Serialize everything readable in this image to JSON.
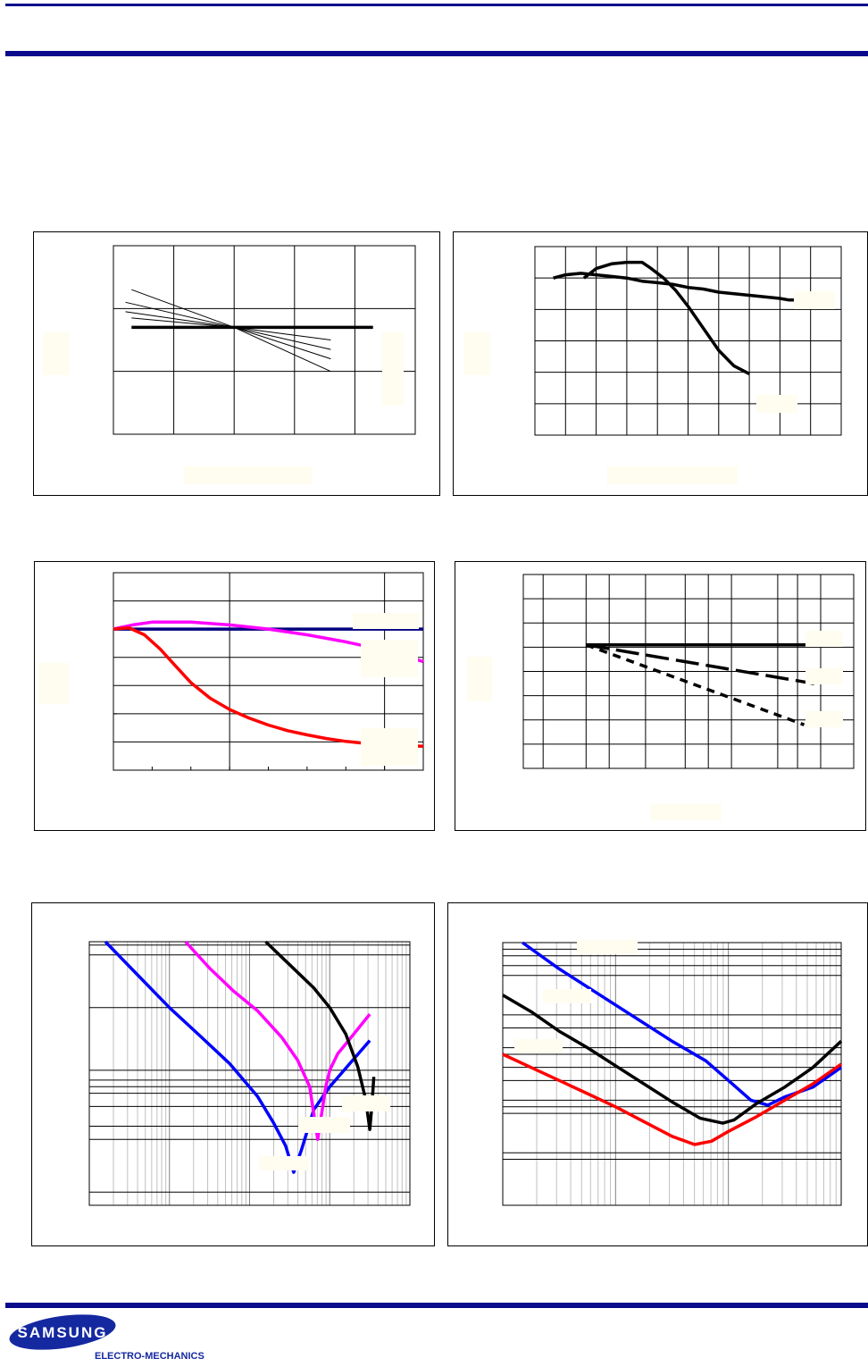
{
  "colors": {
    "rule": "#0a0a8c",
    "label_box": "#fffdf0",
    "logo_blue": "#1428a0",
    "black": "#000000",
    "blue": "#0000ff",
    "magenta": "#ff00ff",
    "red": "#ff0000",
    "navy": "#000080"
  },
  "branding": {
    "brand": "SAMSUNG",
    "division": "ELECTRO-MECHANICS"
  },
  "chart_data": [
    {
      "id": "chart-1",
      "type": "line",
      "x_range": [
        0,
        5
      ],
      "y_range": [
        0,
        3
      ],
      "vlines": [
        1,
        2,
        3,
        4
      ],
      "hlines": [
        1,
        2
      ],
      "series": [
        {
          "style": "thick",
          "color": "#000000",
          "x": [
            0.3,
            4.3
          ],
          "y": [
            1.7,
            1.7
          ]
        },
        {
          "style": "thin",
          "color": "#000000",
          "x": [
            0.3,
            2.0,
            3.6
          ],
          "y": [
            2.3,
            1.7,
            1.0
          ]
        },
        {
          "style": "thin",
          "color": "#000000",
          "x": [
            0.2,
            2.0,
            3.6
          ],
          "y": [
            2.1,
            1.7,
            1.2
          ]
        },
        {
          "style": "thin",
          "color": "#000000",
          "x": [
            0.2,
            2.0,
            3.6
          ],
          "y": [
            1.95,
            1.7,
            1.35
          ]
        },
        {
          "style": "thin",
          "color": "#000000",
          "x": [
            0.3,
            2.0,
            3.6
          ],
          "y": [
            1.85,
            1.7,
            1.5
          ]
        }
      ]
    },
    {
      "id": "chart-2",
      "type": "line",
      "x_range": [
        0,
        10
      ],
      "y_range": [
        0,
        6
      ],
      "vlines": [
        1,
        2,
        3,
        4,
        5,
        6,
        7,
        8,
        9
      ],
      "hlines": [
        1,
        2,
        3,
        4,
        5
      ],
      "series": [
        {
          "style": "thick",
          "color": "#000000",
          "x": [
            0.6,
            1.0,
            1.5,
            2.0,
            2.5,
            3.0,
            3.5,
            4.0,
            4.5,
            5.0,
            5.5,
            6.0,
            6.5,
            7.0,
            7.5,
            8.0,
            8.3,
            8.8,
            9.3,
            9.6
          ],
          "y": [
            5.0,
            5.1,
            5.15,
            5.1,
            5.05,
            5.0,
            4.9,
            4.85,
            4.8,
            4.7,
            4.65,
            4.55,
            4.5,
            4.45,
            4.4,
            4.35,
            4.3,
            4.3,
            4.32,
            4.3
          ]
        },
        {
          "style": "thick",
          "color": "#000000",
          "x": [
            1.6,
            2.0,
            2.5,
            3.0,
            3.5,
            3.8,
            4.2,
            4.6,
            5.0,
            5.5,
            6.0,
            6.5,
            7.0
          ],
          "y": [
            5.0,
            5.3,
            5.45,
            5.5,
            5.5,
            5.3,
            5.0,
            4.6,
            4.1,
            3.4,
            2.7,
            2.2,
            1.95
          ]
        }
      ]
    },
    {
      "id": "chart-3",
      "type": "line",
      "x_range": [
        0,
        8
      ],
      "y_range": [
        0,
        7
      ],
      "vlines": [
        3,
        7
      ],
      "hlines": [
        1,
        2,
        3,
        4,
        5,
        6
      ],
      "series": [
        {
          "style": "thick",
          "color": "#000080",
          "x": [
            0,
            8
          ],
          "y": [
            5.0,
            5.0
          ]
        },
        {
          "style": "thick",
          "color": "#ff00ff",
          "x": [
            0,
            0.5,
            1.0,
            2.0,
            3.0,
            4.0,
            5.0,
            6.0,
            7.0,
            8.0
          ],
          "y": [
            5.0,
            5.15,
            5.25,
            5.25,
            5.15,
            5.0,
            4.8,
            4.55,
            4.25,
            3.85
          ]
        },
        {
          "style": "thick",
          "color": "#ff0000",
          "x": [
            0,
            0.4,
            0.8,
            1.2,
            1.6,
            2.0,
            2.5,
            3.0,
            3.5,
            4.0,
            4.5,
            5.0,
            5.5,
            6.0,
            6.5,
            7.0,
            7.5,
            8.0
          ],
          "y": [
            5.0,
            5.05,
            4.8,
            4.3,
            3.7,
            3.1,
            2.55,
            2.15,
            1.85,
            1.6,
            1.4,
            1.25,
            1.12,
            1.02,
            0.95,
            0.9,
            0.87,
            0.85
          ]
        }
      ]
    },
    {
      "id": "chart-4",
      "type": "line",
      "x_range": [
        0,
        10
      ],
      "y_range": [
        0,
        8
      ],
      "vlines": [
        0.6,
        1.9,
        2.6,
        3.7,
        4.9,
        5.6,
        6.3,
        7.7,
        8.3,
        9.0
      ],
      "hlines": [
        1,
        2,
        3,
        4,
        5,
        6,
        7
      ],
      "series": [
        {
          "style": "thick",
          "color": "#000000",
          "x": [
            1.9,
            8.8
          ],
          "y": [
            5.1,
            5.1
          ]
        },
        {
          "style": "dashlong",
          "color": "#000000",
          "x": [
            1.9,
            8.8
          ],
          "y": [
            5.1,
            3.5
          ]
        },
        {
          "style": "dashshort",
          "color": "#000000",
          "x": [
            1.9,
            8.5
          ],
          "y": [
            5.1,
            1.8
          ]
        }
      ]
    },
    {
      "id": "chart-5",
      "type": "line",
      "x_range": [
        0,
        8
      ],
      "y_range": [
        0,
        8
      ],
      "x_log_minor": true,
      "hlines": [
        0.4,
        2.0,
        2.4,
        3.0,
        3.4,
        3.6,
        3.8,
        4.1,
        6.0,
        7.6,
        7.9
      ],
      "vlines": [
        2,
        4,
        6
      ],
      "series": [
        {
          "style": "thick",
          "color": "#0000ff",
          "x": [
            0.4,
            1.2,
            2.0,
            2.8,
            3.5,
            4.2,
            4.6,
            4.9,
            5.1,
            5.3,
            5.6,
            6.0,
            6.5,
            7.0
          ],
          "y": [
            8.0,
            7.0,
            6.0,
            5.1,
            4.3,
            3.3,
            2.5,
            1.8,
            1.0,
            1.7,
            2.9,
            3.6,
            4.3,
            5.0
          ]
        },
        {
          "style": "thick",
          "color": "#ff00ff",
          "x": [
            2.4,
            3.0,
            3.6,
            4.2,
            4.8,
            5.2,
            5.5,
            5.7,
            5.9,
            6.0,
            6.2,
            6.6,
            7.0
          ],
          "y": [
            8.0,
            7.2,
            6.5,
            5.9,
            5.1,
            4.4,
            3.6,
            2.0,
            3.6,
            4.1,
            4.6,
            5.2,
            5.8
          ]
        },
        {
          "style": "thick",
          "color": "#000000",
          "x": [
            4.4,
            5.0,
            5.6,
            6.0,
            6.4,
            6.7,
            6.9,
            7.0,
            7.05,
            7.1
          ],
          "y": [
            8.0,
            7.3,
            6.6,
            6.0,
            5.2,
            4.2,
            3.2,
            2.3,
            3.0,
            3.9
          ]
        }
      ]
    },
    {
      "id": "chart-6",
      "type": "line",
      "x_range": [
        0,
        6
      ],
      "y_range": [
        0,
        8
      ],
      "x_log_minor": true,
      "hlines": [
        1.4,
        1.6,
        2.8,
        3.0,
        3.2,
        3.8,
        4.2,
        4.6,
        4.8,
        5.4,
        5.8,
        7.0,
        7.3,
        7.6,
        7.8
      ],
      "vlines": [
        2,
        4
      ],
      "series": [
        {
          "style": "thick",
          "color": "#0000ff",
          "x": [
            0.35,
            1.0,
            2.0,
            3.0,
            3.6,
            4.0,
            4.4,
            4.7,
            5.0,
            5.5,
            6.0
          ],
          "y": [
            8.0,
            7.2,
            6.1,
            5.0,
            4.4,
            3.8,
            3.2,
            3.05,
            3.3,
            3.6,
            4.2
          ]
        },
        {
          "style": "thick",
          "color": "#000000",
          "x": [
            0,
            0.5,
            1.0,
            1.5,
            2.0,
            2.5,
            3.0,
            3.5,
            3.9,
            4.1,
            4.5,
            5.0,
            5.5,
            6.0
          ],
          "y": [
            6.4,
            5.9,
            5.3,
            4.8,
            4.25,
            3.7,
            3.15,
            2.65,
            2.5,
            2.6,
            3.1,
            3.6,
            4.2,
            5.0
          ]
        },
        {
          "style": "thick",
          "color": "#ff0000",
          "x": [
            0,
            0.5,
            1.0,
            1.5,
            2.0,
            2.5,
            3.0,
            3.4,
            3.7,
            4.0,
            4.5,
            5.0,
            5.5,
            6.0
          ],
          "y": [
            4.6,
            4.2,
            3.8,
            3.4,
            3.0,
            2.55,
            2.1,
            1.85,
            1.95,
            2.25,
            2.7,
            3.2,
            3.7,
            4.3
          ]
        }
      ]
    }
  ]
}
